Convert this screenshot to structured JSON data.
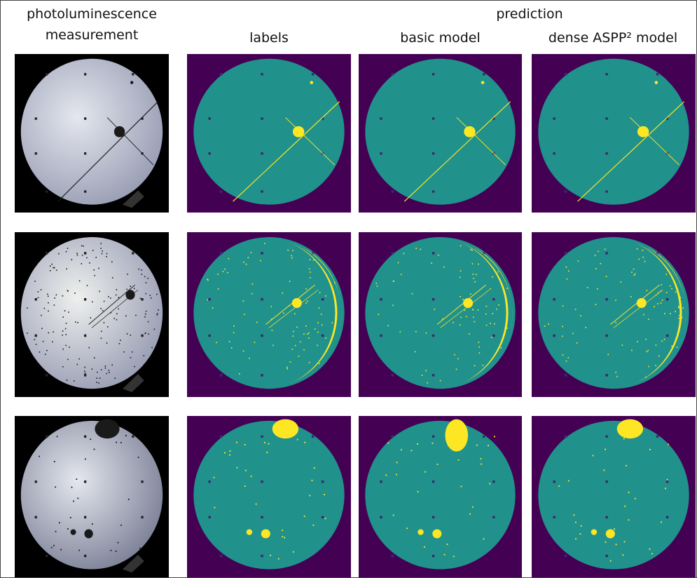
{
  "header": {
    "group_title": "prediction",
    "columns": [
      "photoluminescence measurement",
      "labels",
      "basic model",
      "dense ASPP² model"
    ]
  }
}
